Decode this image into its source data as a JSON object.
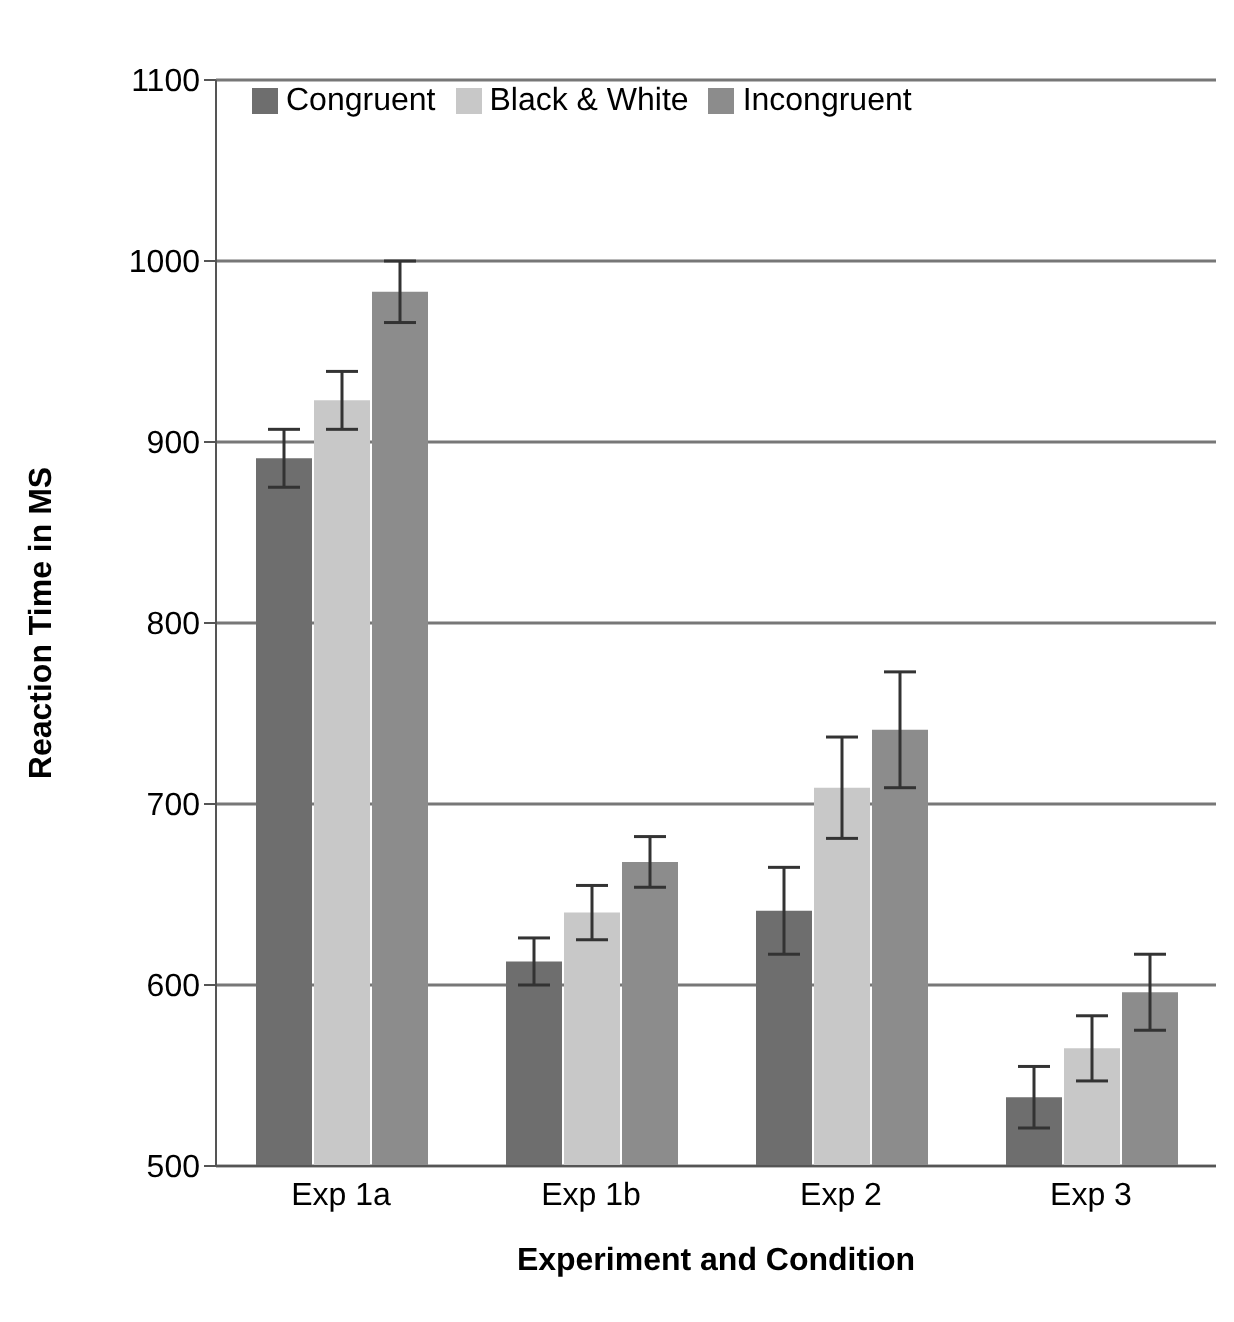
{
  "chart_data": {
    "type": "bar",
    "xlabel": "Experiment  and Condition",
    "ylabel": "Reaction Time in MS",
    "categories": [
      "Exp 1a",
      "Exp 1b",
      "Exp 2",
      "Exp 3"
    ],
    "series": [
      {
        "name": "Congruent",
        "color": "#6e6e6e",
        "values": [
          891,
          613,
          641,
          538
        ],
        "errors": [
          16,
          13,
          24,
          17
        ]
      },
      {
        "name": "Black & White",
        "color": "#c8c8c8",
        "values": [
          923,
          640,
          709,
          565
        ],
        "errors": [
          16,
          15,
          28,
          18
        ]
      },
      {
        "name": "Incongruent",
        "color": "#8c8c8c",
        "values": [
          983,
          668,
          741,
          596
        ],
        "errors": [
          17,
          14,
          32,
          21
        ]
      }
    ],
    "ylim": [
      500,
      1100
    ],
    "yticks": [
      500,
      600,
      700,
      800,
      900,
      1000,
      1100
    ],
    "grid": "y",
    "legend": "top left"
  }
}
